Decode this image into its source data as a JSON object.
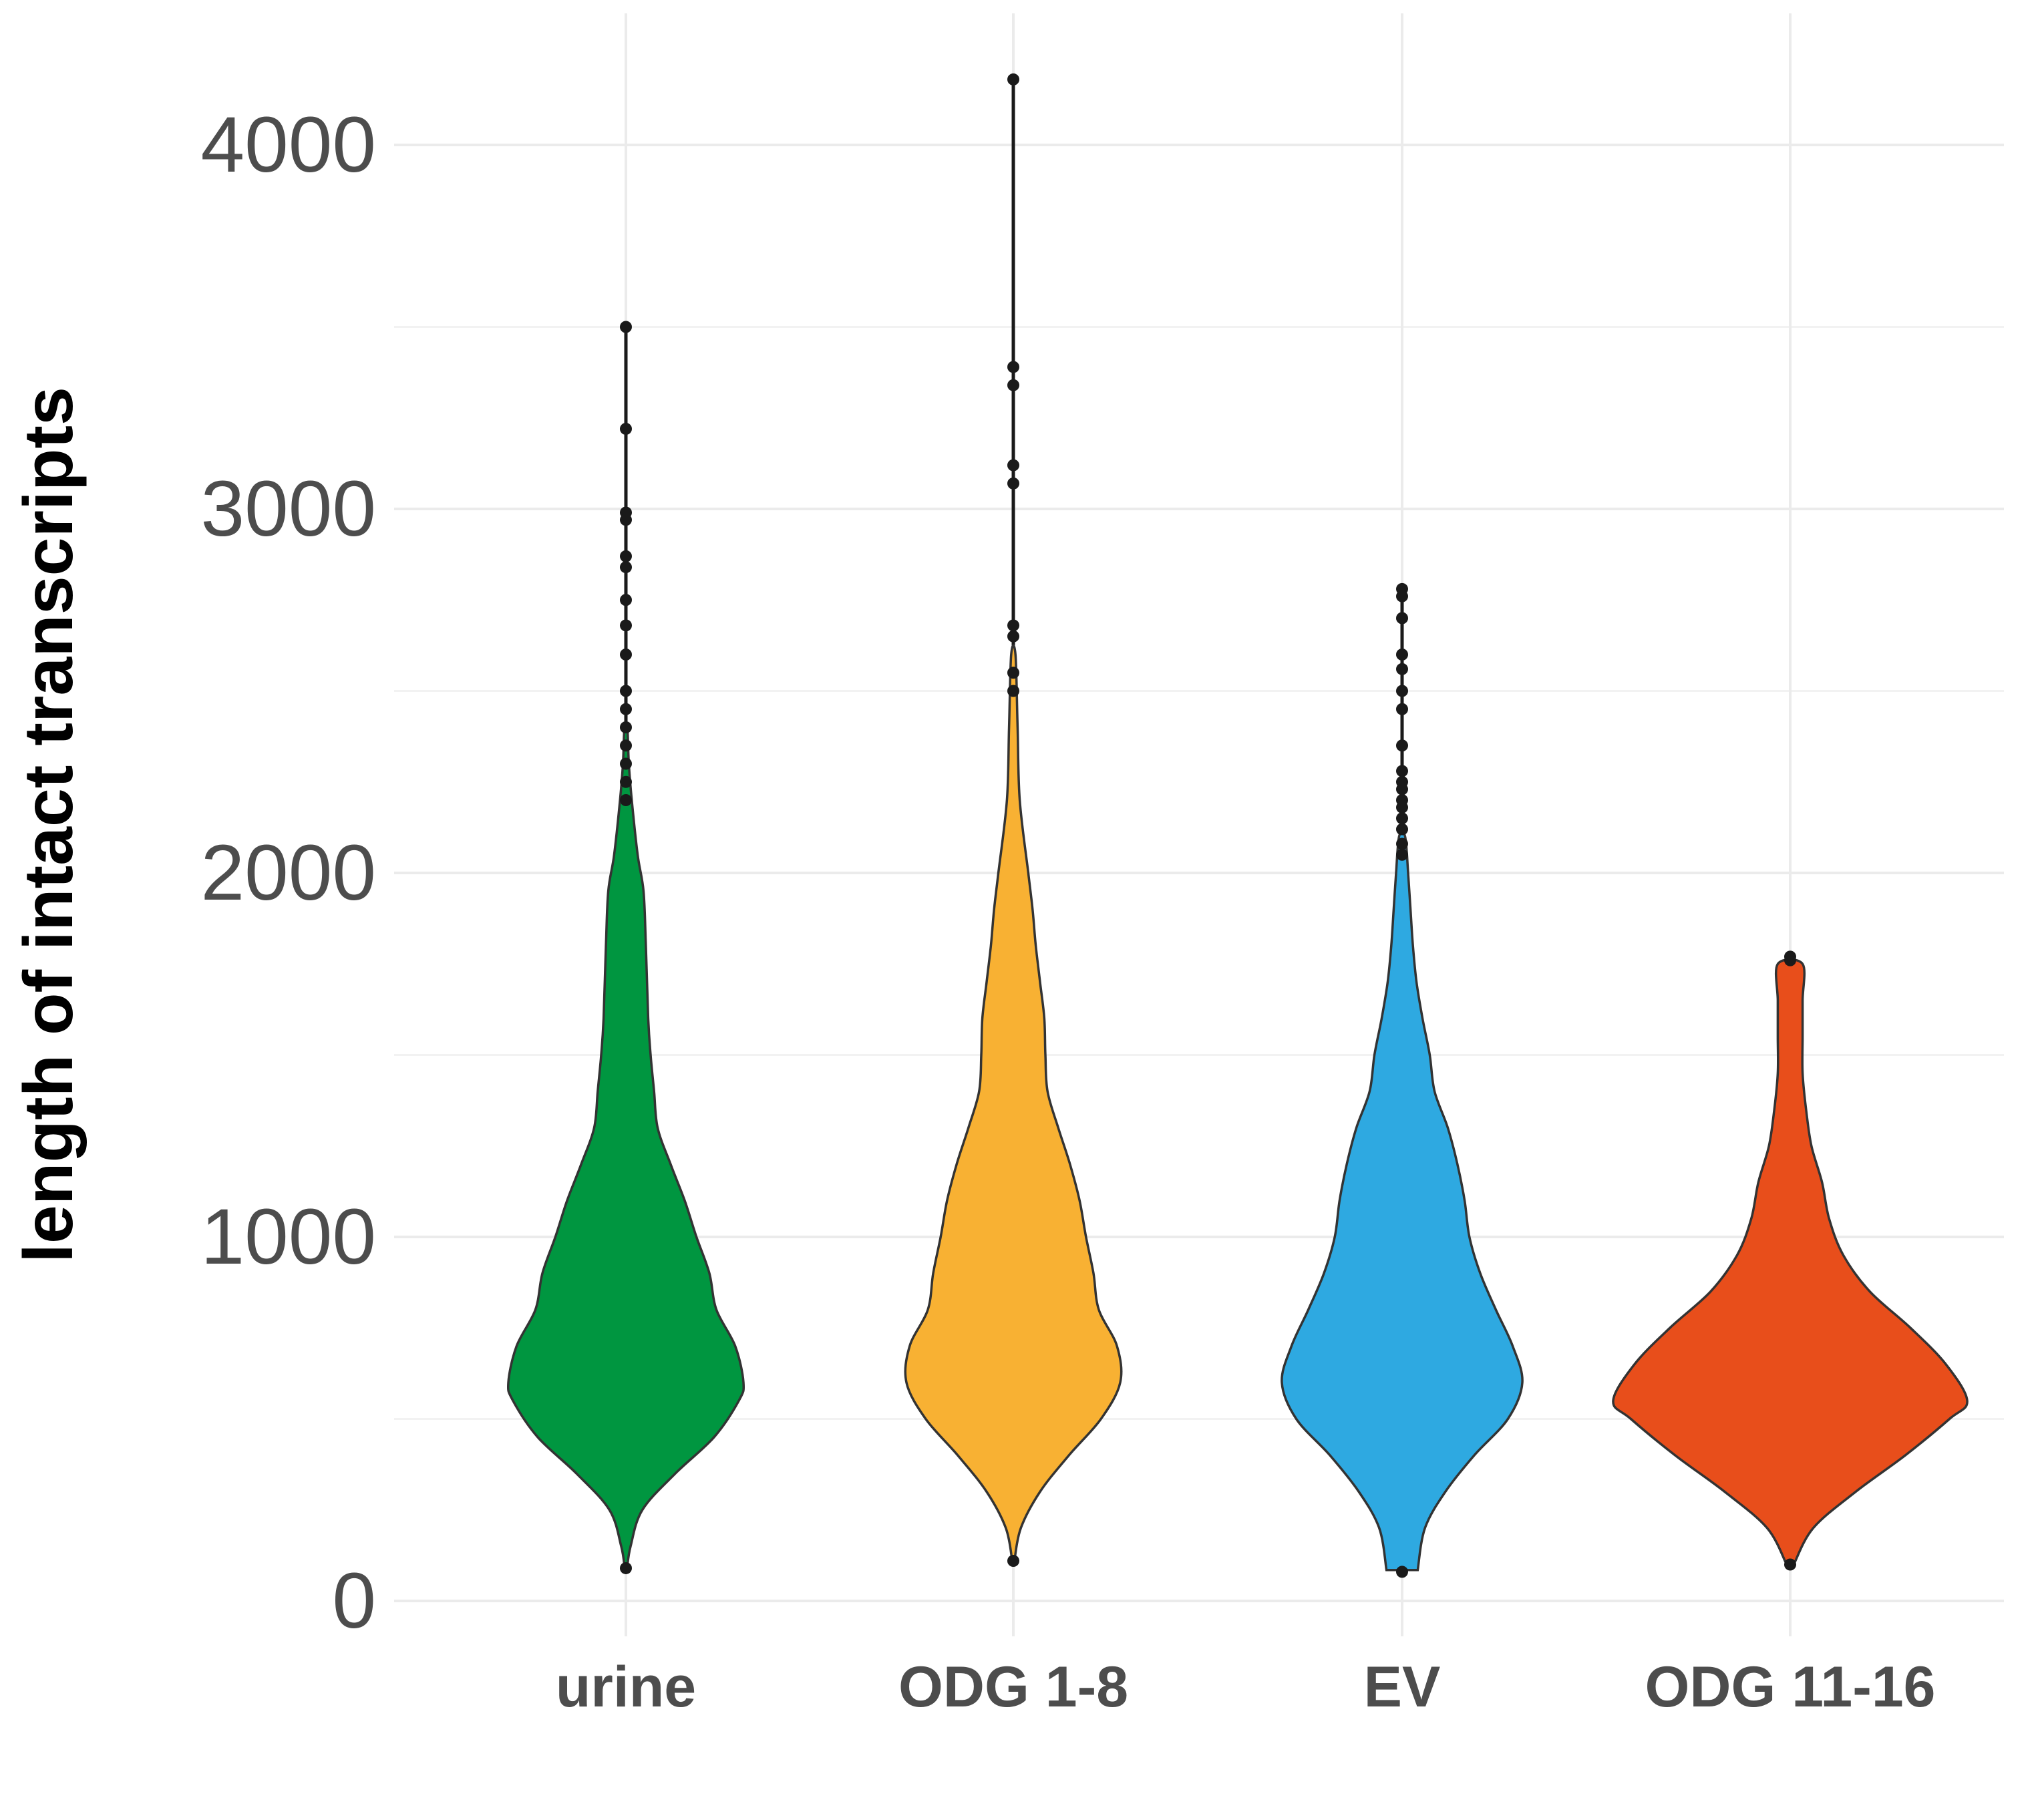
{
  "chart_data": {
    "type": "violin",
    "xlabel": "",
    "ylabel": "length of intact transcripts",
    "ylim": [
      -100,
      4360
    ],
    "yticks": [
      0,
      1000,
      2000,
      3000,
      4000
    ],
    "grid": true,
    "legend": "none",
    "categories": [
      "urine",
      "ODG 1-8",
      "EV",
      "ODG 11-16"
    ],
    "series": [
      {
        "category": "urine",
        "color": "#009640",
        "min": 90,
        "max": 3500,
        "density": [
          [
            90,
            0.01
          ],
          [
            150,
            0.04
          ],
          [
            250,
            0.14
          ],
          [
            350,
            0.42
          ],
          [
            450,
            0.75
          ],
          [
            550,
            0.96
          ],
          [
            600,
            1.0
          ],
          [
            700,
            0.93
          ],
          [
            800,
            0.77
          ],
          [
            900,
            0.71
          ],
          [
            1000,
            0.6
          ],
          [
            1100,
            0.5
          ],
          [
            1200,
            0.38
          ],
          [
            1300,
            0.27
          ],
          [
            1400,
            0.24
          ],
          [
            1500,
            0.21
          ],
          [
            1600,
            0.19
          ],
          [
            1800,
            0.17
          ],
          [
            1950,
            0.15
          ],
          [
            2050,
            0.1
          ],
          [
            2200,
            0.05
          ],
          [
            2300,
            0.025
          ],
          [
            2400,
            0.012
          ]
        ],
        "outliers": [
          2200,
          2250,
          2300,
          2350,
          2400,
          2450,
          2500,
          2600,
          2680,
          2750,
          2840,
          2870,
          2970,
          2990,
          3220,
          3500
        ]
      },
      {
        "category": "ODG 1-8",
        "color": "#f8b133",
        "min": 110,
        "max": 4180,
        "density": [
          [
            110,
            0.01
          ],
          [
            200,
            0.07
          ],
          [
            300,
            0.25
          ],
          [
            400,
            0.52
          ],
          [
            500,
            0.82
          ],
          [
            600,
            1.0
          ],
          [
            700,
            0.97
          ],
          [
            800,
            0.8
          ],
          [
            900,
            0.75
          ],
          [
            1000,
            0.68
          ],
          [
            1100,
            0.62
          ],
          [
            1200,
            0.53
          ],
          [
            1300,
            0.42
          ],
          [
            1400,
            0.32
          ],
          [
            1500,
            0.3
          ],
          [
            1600,
            0.29
          ],
          [
            1700,
            0.25
          ],
          [
            1800,
            0.21
          ],
          [
            1900,
            0.18
          ],
          [
            2000,
            0.14
          ],
          [
            2200,
            0.06
          ],
          [
            2400,
            0.04
          ],
          [
            2600,
            0.02
          ]
        ],
        "outliers": [
          2500,
          2550,
          2650,
          2680,
          3070,
          3120,
          3340,
          3390,
          4180
        ]
      },
      {
        "category": "EV",
        "color": "#2ea9e1",
        "min": 80,
        "max": 2780,
        "density": [
          [
            85,
            0.13
          ],
          [
            200,
            0.19
          ],
          [
            300,
            0.36
          ],
          [
            400,
            0.6
          ],
          [
            500,
            0.88
          ],
          [
            600,
            1.0
          ],
          [
            700,
            0.92
          ],
          [
            800,
            0.78
          ],
          [
            900,
            0.65
          ],
          [
            1000,
            0.56
          ],
          [
            1100,
            0.52
          ],
          [
            1200,
            0.46
          ],
          [
            1300,
            0.38
          ],
          [
            1400,
            0.27
          ],
          [
            1500,
            0.23
          ],
          [
            1600,
            0.17
          ],
          [
            1700,
            0.12
          ],
          [
            1800,
            0.09
          ],
          [
            1900,
            0.07
          ],
          [
            2000,
            0.05
          ],
          [
            2100,
            0.025
          ]
        ],
        "outliers": [
          2050,
          2080,
          2120,
          2150,
          2180,
          2200,
          2230,
          2250,
          2280,
          2350,
          2450,
          2500,
          2560,
          2600,
          2700,
          2760,
          2780
        ]
      },
      {
        "category": "ODG 11-16",
        "color": "#e84e1b",
        "min": 100,
        "max": 1770,
        "density": [
          [
            100,
            0.02
          ],
          [
            200,
            0.13
          ],
          [
            300,
            0.37
          ],
          [
            400,
            0.65
          ],
          [
            500,
            0.9
          ],
          [
            550,
            1.0
          ],
          [
            650,
            0.88
          ],
          [
            750,
            0.68
          ],
          [
            850,
            0.45
          ],
          [
            950,
            0.3
          ],
          [
            1050,
            0.22
          ],
          [
            1150,
            0.18
          ],
          [
            1250,
            0.12
          ],
          [
            1350,
            0.09
          ],
          [
            1450,
            0.07
          ],
          [
            1550,
            0.07
          ],
          [
            1650,
            0.07
          ],
          [
            1750,
            0.07
          ]
        ],
        "outliers": [
          1760,
          1770
        ]
      }
    ]
  }
}
